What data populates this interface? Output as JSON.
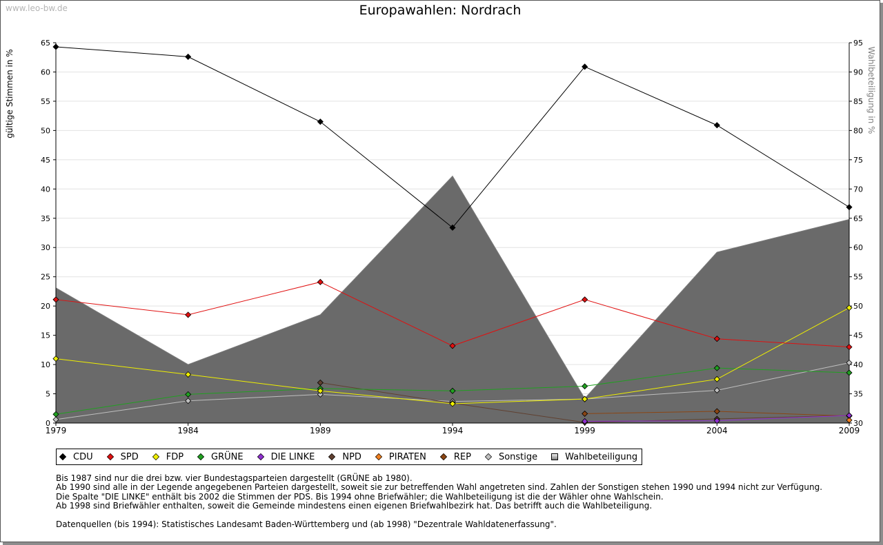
{
  "watermark": "www.leo-bw.de",
  "chart_data": {
    "type": "line",
    "title": "Europawahlen: Nordrach",
    "ylabel": "gültige Stimmen in %",
    "y2label": "Wahlbeteiligung in %",
    "x": [
      "1979",
      "1984",
      "1989",
      "1994",
      "1999",
      "2004",
      "2009"
    ],
    "ylim": [
      0,
      65
    ],
    "yticks": [
      0,
      5,
      10,
      15,
      20,
      25,
      30,
      35,
      40,
      45,
      50,
      55,
      60,
      65
    ],
    "y2lim": [
      30,
      95
    ],
    "y2ticks": [
      30,
      35,
      40,
      45,
      50,
      55,
      60,
      65,
      70,
      75,
      80,
      85,
      90,
      95
    ],
    "grid": true,
    "legend_position": "bottom",
    "area": {
      "name": "Wahlbeteiligung",
      "axis": "right",
      "values": [
        53.1,
        40.0,
        48.5,
        72.2,
        34.2,
        59.2,
        64.8
      ]
    },
    "series": [
      {
        "name": "CDU",
        "color": "#000000",
        "values": [
          64.3,
          62.6,
          51.5,
          33.4,
          60.9,
          50.9,
          36.9
        ]
      },
      {
        "name": "SPD",
        "color": "#e01010",
        "values": [
          21.1,
          18.5,
          24.1,
          13.2,
          21.1,
          14.4,
          13.0
        ]
      },
      {
        "name": "FDP",
        "color": "#f0f000",
        "values": [
          11.0,
          8.3,
          5.5,
          3.3,
          4.1,
          7.5,
          19.7
        ]
      },
      {
        "name": "GRÜNE",
        "color": "#20a020",
        "values": [
          1.5,
          4.9,
          5.9,
          5.5,
          6.3,
          9.4,
          8.6
        ]
      },
      {
        "name": "DIE LINKE",
        "color": "#9030d0",
        "values": [
          null,
          null,
          null,
          null,
          0.3,
          0.4,
          1.3
        ]
      },
      {
        "name": "NPD",
        "color": "#604030",
        "values": [
          null,
          null,
          6.9,
          3.4,
          0.1,
          0.7,
          1.3
        ]
      },
      {
        "name": "PIRATEN",
        "color": "#f08020",
        "values": [
          null,
          null,
          null,
          null,
          null,
          null,
          0.5
        ]
      },
      {
        "name": "REP",
        "color": "#8b4513",
        "values": [
          null,
          null,
          null,
          null,
          1.6,
          2.0,
          1.2
        ]
      },
      {
        "name": "Sonstige",
        "color": "#c0c0c0",
        "values": [
          0.6,
          3.8,
          4.9,
          3.7,
          4.1,
          5.6,
          10.3
        ]
      }
    ]
  },
  "legend": [
    {
      "label": "CDU",
      "color": "#000000",
      "shape": "diamond"
    },
    {
      "label": "SPD",
      "color": "#e01010",
      "shape": "diamond"
    },
    {
      "label": "FDP",
      "color": "#f0f000",
      "shape": "diamond"
    },
    {
      "label": "GRÜNE",
      "color": "#20a020",
      "shape": "diamond"
    },
    {
      "label": "DIE LINKE",
      "color": "#9030d0",
      "shape": "diamond"
    },
    {
      "label": "NPD",
      "color": "#604030",
      "shape": "diamond"
    },
    {
      "label": "PIRATEN",
      "color": "#f08020",
      "shape": "diamond"
    },
    {
      "label": "REP",
      "color": "#8b4513",
      "shape": "diamond"
    },
    {
      "label": "Sonstige",
      "color": "#c0c0c0",
      "shape": "diamond"
    },
    {
      "label": "Wahlbeteiligung",
      "color": "#a0a0a0",
      "shape": "square"
    }
  ],
  "notes": [
    "Bis 1987 sind nur die drei bzw. vier Bundestagsparteien dargestellt (GRÜNE ab 1980).",
    "Ab 1990 sind alle in der Legende angegebenen Parteien dargestellt, soweit sie zur betreffenden Wahl angetreten sind. Zahlen der Sonstigen stehen 1990 und 1994 nicht zur Verfügung.",
    "Die Spalte \"DIE LINKE\" enthält bis 2002 die Stimmen der PDS. Bis 1994 ohne Briefwähler; die Wahlbeteiligung ist die der Wähler ohne Wahlschein.",
    "Ab 1998 sind Briefwähler enthalten, soweit die Gemeinde mindestens einen eigenen Briefwahlbezirk hat. Das betrifft auch die Wahlbeteiligung."
  ],
  "source": "Datenquellen (bis 1994): Statistisches Landesamt Baden-Württemberg und (ab 1998) \"Dezentrale Wahldatenerfassung\"."
}
